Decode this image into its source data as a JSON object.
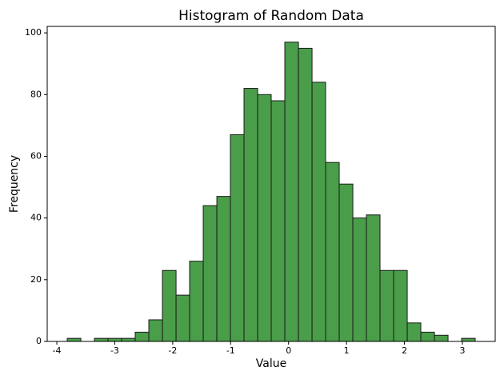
{
  "chart_data": {
    "type": "histogram",
    "title": "Histogram of Random Data",
    "x_label": "Value",
    "y_label": "Frequency",
    "bins": [
      -3.82,
      -3.585,
      -3.351,
      -3.116,
      -2.881,
      -2.647,
      -2.412,
      -2.177,
      -1.942,
      -1.708,
      -1.473,
      -1.238,
      -1.004,
      -0.769,
      -0.534,
      -0.3,
      -0.065,
      0.17,
      0.405,
      0.639,
      0.874,
      1.109,
      1.343,
      1.578,
      1.813,
      2.048,
      2.282,
      2.517,
      2.752,
      2.986,
      3.221
    ],
    "values": [
      1,
      0,
      1,
      1,
      1,
      3,
      7,
      23,
      15,
      26,
      44,
      47,
      67,
      82,
      80,
      78,
      97,
      95,
      84,
      58,
      51,
      40,
      41,
      23,
      23,
      6,
      3,
      2,
      0,
      1
    ],
    "color": "#4a9e4a",
    "edgecolor": "#1a1a1a",
    "xlim": [
      -4.166,
      3.566
    ],
    "xticks": [
      -4,
      -3,
      -2,
      -1,
      0,
      1,
      2,
      3
    ],
    "ylim": [
      0,
      102.1
    ],
    "yticks": [
      0,
      20,
      40,
      60,
      80,
      100
    ],
    "grid": false
  }
}
